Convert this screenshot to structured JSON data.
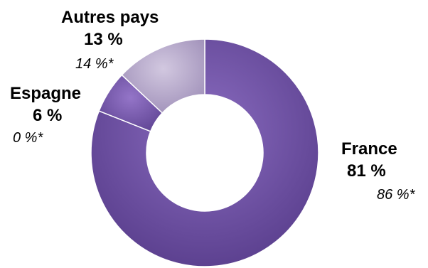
{
  "chart_data": {
    "type": "pie",
    "categories": [
      "France",
      "Espagne",
      "Autres pays"
    ],
    "values": [
      81,
      6,
      13
    ],
    "value_labels": [
      "81 %",
      "6 %",
      "13 %"
    ],
    "previous_labels": [
      "86 %*",
      "0 %*",
      "14 %*"
    ],
    "colors": [
      "#6a4a9e",
      "#7d5bb0",
      "#b7aaca"
    ],
    "donut": true
  }
}
